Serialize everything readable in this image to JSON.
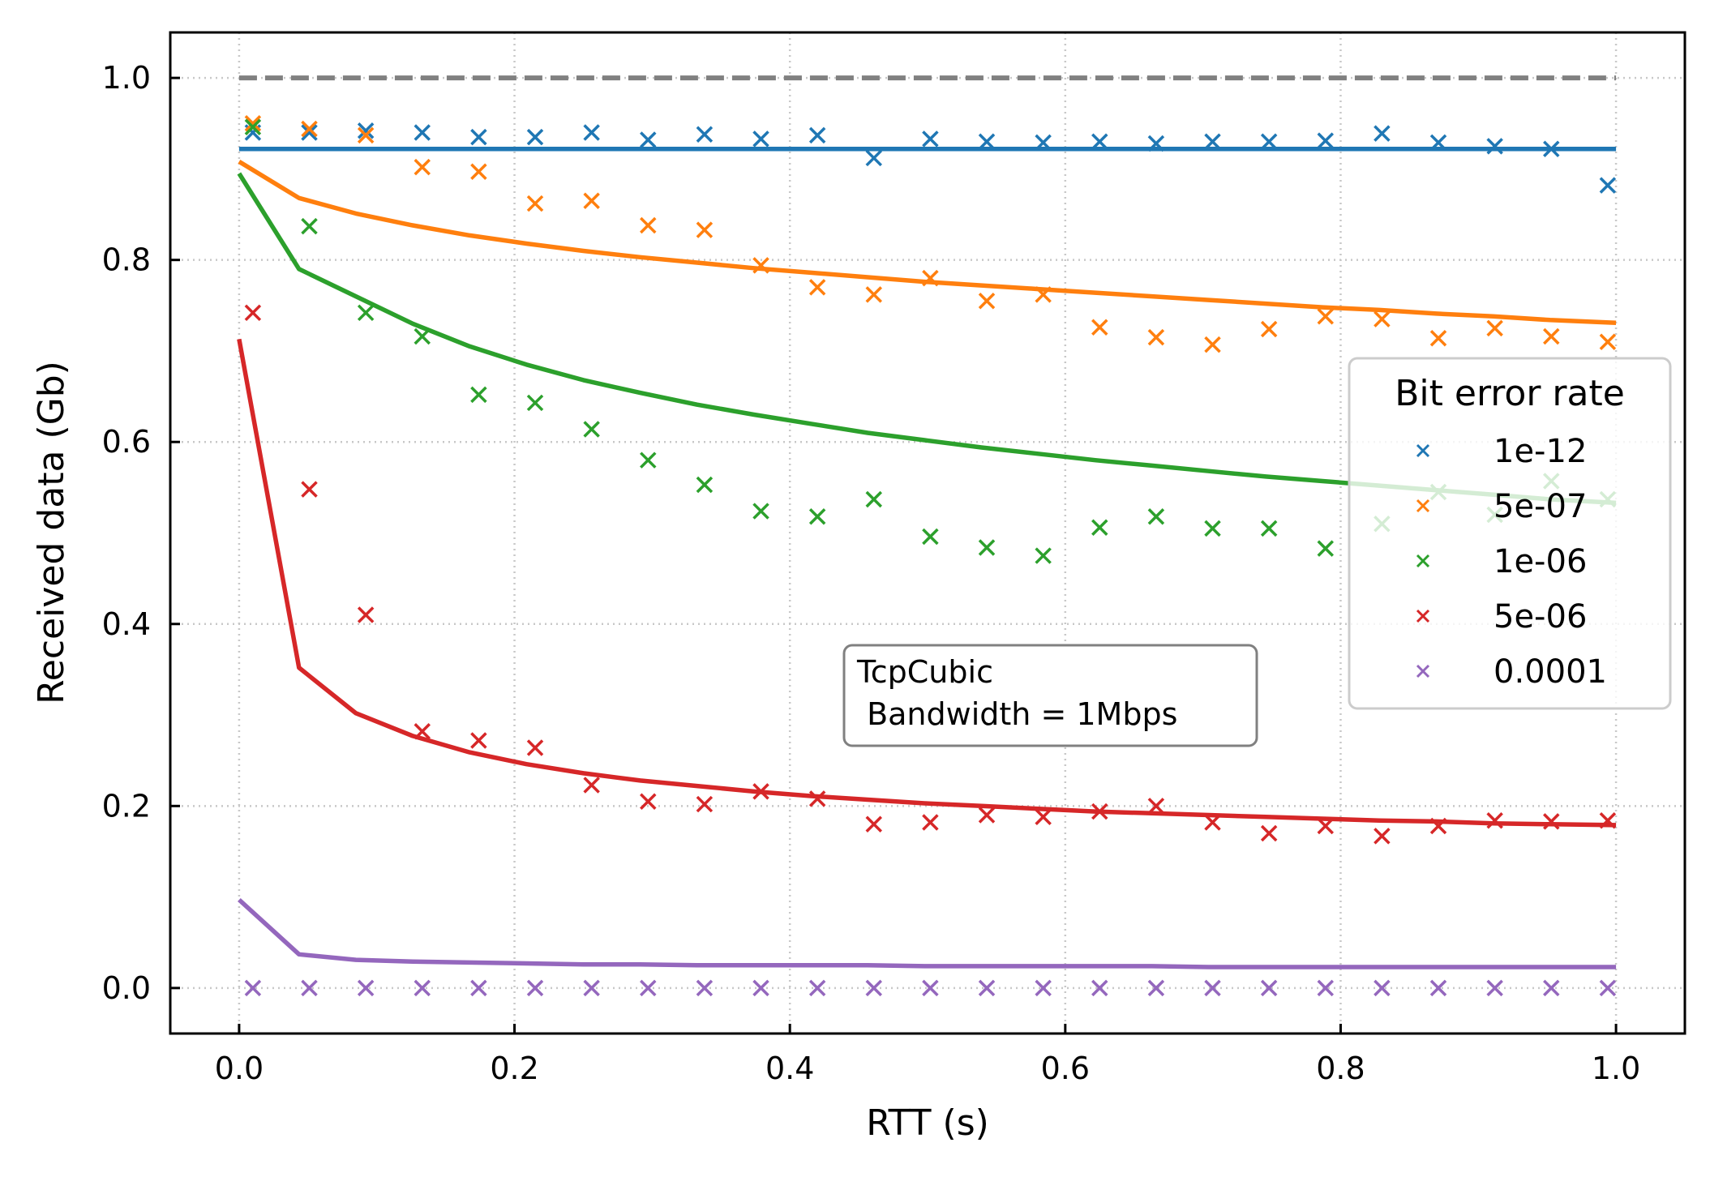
{
  "chart_data": {
    "type": "line",
    "xlabel": "RTT (s)",
    "ylabel": "Received data (Gb)",
    "xlim": [
      -0.05,
      1.05
    ],
    "ylim": [
      -0.05,
      1.05
    ],
    "xticks": [
      "0.0",
      "0.2",
      "0.4",
      "0.6",
      "0.8",
      "1.0"
    ],
    "yticks": [
      "0.0",
      "0.2",
      "0.4",
      "0.6",
      "0.8",
      "1.0"
    ],
    "grid": true,
    "grid_style": "dotted",
    "legend_title": "Bit error rate",
    "legend_position": "center-right",
    "annotation": [
      "TcpCubic",
      " Bandwidth = 1Mbps"
    ],
    "reference_line": {
      "y": 1.0,
      "color": "#808080",
      "style": "dashed"
    },
    "marker_x": [
      0.01,
      0.051,
      0.092,
      0.133,
      0.174,
      0.215,
      0.256,
      0.297,
      0.338,
      0.379,
      0.42,
      0.461,
      0.502,
      0.543,
      0.584,
      0.625,
      0.666,
      0.707,
      0.748,
      0.789,
      0.83,
      0.871,
      0.912,
      0.953,
      0.994
    ],
    "line_x": [
      0.0,
      0.0435,
      0.0848,
      0.1261,
      0.1674,
      0.2087,
      0.25,
      0.2913,
      0.3326,
      0.3739,
      0.4152,
      0.4565,
      0.4978,
      0.5391,
      0.5804,
      0.6217,
      0.663,
      0.7043,
      0.7456,
      0.7869,
      0.8282,
      0.8695,
      0.9108,
      0.9521,
      1.0
    ],
    "series": [
      {
        "name": "1e-12",
        "color": "#1f77b4",
        "markers": [
          0.94,
          0.94,
          0.942,
          0.94,
          0.935,
          0.935,
          0.94,
          0.932,
          0.938,
          0.933,
          0.937,
          0.912,
          0.933,
          0.93,
          0.929,
          0.93,
          0.928,
          0.93,
          0.93,
          0.931,
          0.939,
          0.929,
          0.925,
          0.922,
          0.882
        ],
        "line": [
          0.922,
          0.922,
          0.922,
          0.922,
          0.922,
          0.922,
          0.922,
          0.922,
          0.922,
          0.922,
          0.922,
          0.922,
          0.922,
          0.922,
          0.922,
          0.922,
          0.922,
          0.922,
          0.922,
          0.922,
          0.922,
          0.922,
          0.922,
          0.922,
          0.922
        ]
      },
      {
        "name": "5e-07",
        "color": "#ff7f0e",
        "markers": [
          0.95,
          0.944,
          0.937,
          0.902,
          0.897,
          0.862,
          0.865,
          0.838,
          0.833,
          0.794,
          0.77,
          0.762,
          0.78,
          0.755,
          0.762,
          0.726,
          0.715,
          0.707,
          0.724,
          0.738,
          0.735,
          0.714,
          0.725,
          0.716,
          0.71
        ],
        "line": [
          0.908,
          0.868,
          0.851,
          0.838,
          0.827,
          0.818,
          0.81,
          0.803,
          0.797,
          0.791,
          0.786,
          0.781,
          0.776,
          0.772,
          0.768,
          0.764,
          0.76,
          0.756,
          0.752,
          0.748,
          0.745,
          0.741,
          0.738,
          0.734,
          0.731
        ]
      },
      {
        "name": "1e-06",
        "color": "#2ca02c",
        "markers": [
          0.946,
          0.837,
          0.742,
          0.716,
          0.652,
          0.643,
          0.614,
          0.58,
          0.553,
          0.524,
          0.518,
          0.537,
          0.496,
          0.484,
          0.475,
          0.506,
          0.518,
          0.505,
          0.505,
          0.483,
          0.51,
          0.545,
          0.52,
          0.557,
          0.537
        ],
        "line": [
          0.895,
          0.79,
          0.76,
          0.73,
          0.705,
          0.685,
          0.668,
          0.654,
          0.641,
          0.63,
          0.62,
          0.61,
          0.602,
          0.594,
          0.587,
          0.58,
          0.574,
          0.568,
          0.562,
          0.557,
          0.552,
          0.547,
          0.542,
          0.537,
          0.533
        ]
      },
      {
        "name": "5e-06",
        "color": "#d62728",
        "markers": [
          0.742,
          0.548,
          0.41,
          0.282,
          0.272,
          0.264,
          0.223,
          0.205,
          0.202,
          0.216,
          0.208,
          0.18,
          0.182,
          0.19,
          0.188,
          0.194,
          0.2,
          0.182,
          0.17,
          0.178,
          0.167,
          0.178,
          0.184,
          0.183,
          0.184
        ],
        "line": [
          0.713,
          0.352,
          0.302,
          0.277,
          0.259,
          0.246,
          0.236,
          0.228,
          0.222,
          0.216,
          0.211,
          0.207,
          0.203,
          0.2,
          0.197,
          0.194,
          0.192,
          0.19,
          0.188,
          0.186,
          0.184,
          0.183,
          0.181,
          0.18,
          0.179
        ]
      },
      {
        "name": "0.0001",
        "color": "#9467bd",
        "markers": [
          0.0,
          0.0,
          0.0,
          0.0,
          0.0,
          0.0,
          0.0,
          0.0,
          0.0,
          0.0,
          0.0,
          0.0,
          0.0,
          0.0,
          0.0,
          0.0,
          0.0,
          0.0,
          0.0,
          0.0,
          0.0,
          0.0,
          0.0,
          0.0,
          0.0
        ],
        "line": [
          0.097,
          0.037,
          0.031,
          0.029,
          0.028,
          0.027,
          0.026,
          0.026,
          0.025,
          0.025,
          0.025,
          0.025,
          0.024,
          0.024,
          0.024,
          0.024,
          0.024,
          0.023,
          0.023,
          0.023,
          0.023,
          0.023,
          0.023,
          0.023,
          0.023
        ]
      }
    ]
  }
}
